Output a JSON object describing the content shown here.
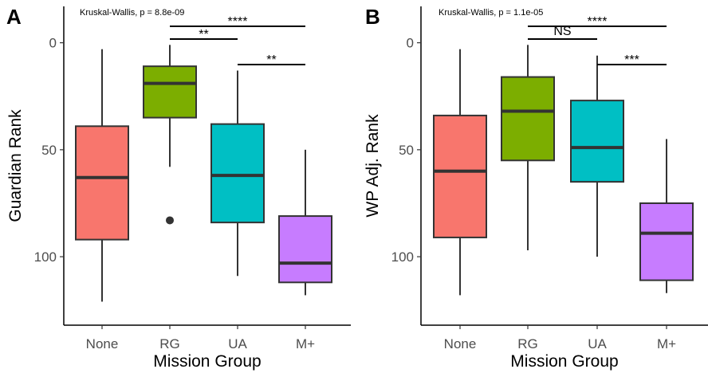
{
  "chart_data": [
    {
      "type": "box",
      "panel_label": "A",
      "annotation": "Kruskal-Wallis, p = 8.8e-09",
      "xlabel": "Mission Group",
      "ylabel": "Guardian Rank",
      "y_reversed": true,
      "ylim": [
        -17,
        132
      ],
      "yticks": [
        0,
        50,
        100
      ],
      "categories": [
        "None",
        "RG",
        "UA",
        "M+"
      ],
      "colors": [
        "#F8766D",
        "#7CAE00",
        "#00BFC4",
        "#C77CFF"
      ],
      "boxes": [
        {
          "min": 3,
          "q1": 39,
          "median": 63,
          "q3": 92,
          "max": 121,
          "outliers": []
        },
        {
          "min": 1,
          "q1": 11,
          "median": 19,
          "q3": 35,
          "max": 58,
          "outliers": [
            83
          ]
        },
        {
          "min": 13,
          "q1": 38,
          "median": 62,
          "q3": 84,
          "max": 109,
          "outliers": []
        },
        {
          "min": 50,
          "q1": 81,
          "median": 103,
          "q3": 112,
          "max": 118,
          "outliers": []
        }
      ],
      "comparisons": [
        {
          "from": "RG",
          "to": "M+",
          "label": "****"
        },
        {
          "from": "RG",
          "to": "UA",
          "label": "**"
        },
        {
          "from": "UA",
          "to": "M+",
          "label": "**"
        }
      ]
    },
    {
      "type": "box",
      "panel_label": "B",
      "annotation": "Kruskal-Wallis, p = 1.1e-05",
      "xlabel": "Mission Group",
      "ylabel": "WP Adj. Rank",
      "y_reversed": true,
      "ylim": [
        -17,
        132
      ],
      "yticks": [
        0,
        50,
        100
      ],
      "categories": [
        "None",
        "RG",
        "UA",
        "M+"
      ],
      "colors": [
        "#F8766D",
        "#7CAE00",
        "#00BFC4",
        "#C77CFF"
      ],
      "boxes": [
        {
          "min": 3,
          "q1": 34,
          "median": 60,
          "q3": 91,
          "max": 118,
          "outliers": []
        },
        {
          "min": 1,
          "q1": 16,
          "median": 32,
          "q3": 55,
          "max": 97,
          "outliers": []
        },
        {
          "min": 6,
          "q1": 27,
          "median": 49,
          "q3": 65,
          "max": 100,
          "outliers": []
        },
        {
          "min": 45,
          "q1": 75,
          "median": 89,
          "q3": 111,
          "max": 117,
          "outliers": []
        }
      ],
      "comparisons": [
        {
          "from": "RG",
          "to": "M+",
          "label": "****"
        },
        {
          "from": "RG",
          "to": "UA",
          "label": "NS"
        },
        {
          "from": "UA",
          "to": "M+",
          "label": "***"
        }
      ]
    }
  ]
}
